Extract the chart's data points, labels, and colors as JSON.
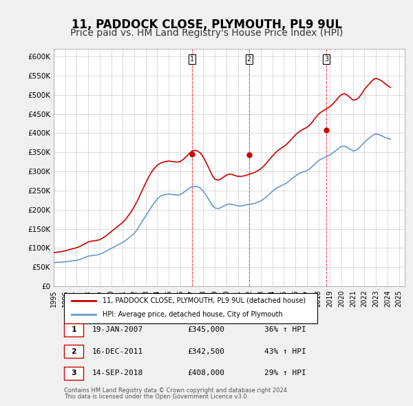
{
  "title": "11, PADDOCK CLOSE, PLYMOUTH, PL9 9UL",
  "subtitle": "Price paid vs. HM Land Registry's House Price Index (HPI)",
  "title_fontsize": 12,
  "subtitle_fontsize": 10,
  "ylabel": "",
  "ylim": [
    0,
    620000
  ],
  "yticks": [
    0,
    50000,
    100000,
    150000,
    200000,
    250000,
    300000,
    350000,
    400000,
    450000,
    500000,
    550000,
    600000
  ],
  "ytick_labels": [
    "£0",
    "£50K",
    "£100K",
    "£150K",
    "£200K",
    "£250K",
    "£300K",
    "£350K",
    "£400K",
    "£450K",
    "£500K",
    "£550K",
    "£600K"
  ],
  "background_color": "#f0f0f0",
  "plot_bg_color": "#ffffff",
  "grid_color": "#cccccc",
  "red_color": "#cc0000",
  "blue_color": "#6699cc",
  "sale_marker_color": "#cc0000",
  "vline_color": "#ff4444",
  "annotation_bg": "#ffffff",
  "sales": [
    {
      "date_num": 2007.05,
      "price": 345000,
      "label": "1"
    },
    {
      "date_num": 2011.96,
      "price": 342500,
      "label": "2"
    },
    {
      "date_num": 2018.71,
      "price": 408000,
      "label": "3"
    }
  ],
  "legend_line1": "11, PADDOCK CLOSE, PLYMOUTH, PL9 9UL (detached house)",
  "legend_line2": "HPI: Average price, detached house, City of Plymouth",
  "table_rows": [
    {
      "num": "1",
      "date": "19-JAN-2007",
      "price": "£345,000",
      "pct": "36% ↑ HPI"
    },
    {
      "num": "2",
      "date": "16-DEC-2011",
      "price": "£342,500",
      "pct": "43% ↑ HPI"
    },
    {
      "num": "3",
      "date": "14-SEP-2018",
      "price": "£408,000",
      "pct": "29% ↑ HPI"
    }
  ],
  "footnote1": "Contains HM Land Registry data © Crown copyright and database right 2024.",
  "footnote2": "This data is licensed under the Open Government Licence v3.0.",
  "hpi_data": {
    "years": [
      1995.0,
      1995.25,
      1995.5,
      1995.75,
      1996.0,
      1996.25,
      1996.5,
      1996.75,
      1997.0,
      1997.25,
      1997.5,
      1997.75,
      1998.0,
      1998.25,
      1998.5,
      1998.75,
      1999.0,
      1999.25,
      1999.5,
      1999.75,
      2000.0,
      2000.25,
      2000.5,
      2000.75,
      2001.0,
      2001.25,
      2001.5,
      2001.75,
      2002.0,
      2002.25,
      2002.5,
      2002.75,
      2003.0,
      2003.25,
      2003.5,
      2003.75,
      2004.0,
      2004.25,
      2004.5,
      2004.75,
      2005.0,
      2005.25,
      2005.5,
      2005.75,
      2006.0,
      2006.25,
      2006.5,
      2006.75,
      2007.0,
      2007.25,
      2007.5,
      2007.75,
      2008.0,
      2008.25,
      2008.5,
      2008.75,
      2009.0,
      2009.25,
      2009.5,
      2009.75,
      2010.0,
      2010.25,
      2010.5,
      2010.75,
      2011.0,
      2011.25,
      2011.5,
      2011.75,
      2012.0,
      2012.25,
      2012.5,
      2012.75,
      2013.0,
      2013.25,
      2013.5,
      2013.75,
      2014.0,
      2014.25,
      2014.5,
      2014.75,
      2015.0,
      2015.25,
      2015.5,
      2015.75,
      2016.0,
      2016.25,
      2016.5,
      2016.75,
      2017.0,
      2017.25,
      2017.5,
      2017.75,
      2018.0,
      2018.25,
      2018.5,
      2018.75,
      2019.0,
      2019.25,
      2019.5,
      2019.75,
      2020.0,
      2020.25,
      2020.5,
      2020.75,
      2021.0,
      2021.25,
      2021.5,
      2021.75,
      2022.0,
      2022.25,
      2022.5,
      2022.75,
      2023.0,
      2023.25,
      2023.5,
      2023.75,
      2024.0,
      2024.25
    ],
    "values": [
      62000,
      62500,
      63000,
      63500,
      64000,
      65000,
      66000,
      67000,
      68000,
      70000,
      73000,
      76000,
      79000,
      80000,
      81000,
      82000,
      84000,
      87000,
      91000,
      95000,
      99000,
      103000,
      107000,
      111000,
      115000,
      120000,
      126000,
      132000,
      138000,
      148000,
      160000,
      172000,
      184000,
      196000,
      208000,
      218000,
      228000,
      235000,
      238000,
      240000,
      241000,
      240000,
      239000,
      238000,
      240000,
      244000,
      250000,
      256000,
      260000,
      261000,
      260000,
      256000,
      248000,
      238000,
      225000,
      213000,
      205000,
      203000,
      205000,
      209000,
      213000,
      215000,
      214000,
      212000,
      210000,
      210000,
      211000,
      213000,
      214000,
      215000,
      217000,
      220000,
      223000,
      228000,
      234000,
      241000,
      248000,
      254000,
      259000,
      262000,
      266000,
      270000,
      276000,
      282000,
      288000,
      293000,
      297000,
      299000,
      302000,
      307000,
      314000,
      321000,
      328000,
      332000,
      336000,
      339000,
      343000,
      348000,
      354000,
      360000,
      365000,
      366000,
      363000,
      358000,
      353000,
      355000,
      360000,
      368000,
      376000,
      383000,
      389000,
      395000,
      398000,
      396000,
      393000,
      389000,
      386000,
      384000
    ]
  },
  "price_paid_data": {
    "years": [
      1995.0,
      1995.25,
      1995.5,
      1995.75,
      1996.0,
      1996.25,
      1996.5,
      1996.75,
      1997.0,
      1997.25,
      1997.5,
      1997.75,
      1998.0,
      1998.25,
      1998.5,
      1998.75,
      1999.0,
      1999.25,
      1999.5,
      1999.75,
      2000.0,
      2000.25,
      2000.5,
      2000.75,
      2001.0,
      2001.25,
      2001.5,
      2001.75,
      2002.0,
      2002.25,
      2002.5,
      2002.75,
      2003.0,
      2003.25,
      2003.5,
      2003.75,
      2004.0,
      2004.25,
      2004.5,
      2004.75,
      2005.0,
      2005.25,
      2005.5,
      2005.75,
      2006.0,
      2006.25,
      2006.5,
      2006.75,
      2007.0,
      2007.25,
      2007.5,
      2007.75,
      2008.0,
      2008.25,
      2008.5,
      2008.75,
      2009.0,
      2009.25,
      2009.5,
      2009.75,
      2010.0,
      2010.25,
      2010.5,
      2010.75,
      2011.0,
      2011.25,
      2011.5,
      2011.75,
      2012.0,
      2012.25,
      2012.5,
      2012.75,
      2013.0,
      2013.25,
      2013.5,
      2013.75,
      2014.0,
      2014.25,
      2014.5,
      2014.75,
      2015.0,
      2015.25,
      2015.5,
      2015.75,
      2016.0,
      2016.25,
      2016.5,
      2016.75,
      2017.0,
      2017.25,
      2017.5,
      2017.75,
      2018.0,
      2018.25,
      2018.5,
      2018.75,
      2019.0,
      2019.25,
      2019.5,
      2019.75,
      2020.0,
      2020.25,
      2020.5,
      2020.75,
      2021.0,
      2021.25,
      2021.5,
      2021.75,
      2022.0,
      2022.25,
      2022.5,
      2022.75,
      2023.0,
      2023.25,
      2023.5,
      2023.75,
      2024.0,
      2024.25
    ],
    "values": [
      88000,
      89000,
      90000,
      91000,
      93000,
      95000,
      97000,
      99000,
      101000,
      104000,
      108000,
      112000,
      116000,
      118000,
      119000,
      120000,
      122000,
      126000,
      131000,
      137000,
      143000,
      149000,
      155000,
      161000,
      167000,
      175000,
      185000,
      196000,
      208000,
      222000,
      238000,
      254000,
      270000,
      285000,
      298000,
      308000,
      316000,
      321000,
      324000,
      326000,
      327000,
      326000,
      325000,
      324000,
      326000,
      331000,
      338000,
      346000,
      353000,
      355000,
      353000,
      348000,
      337000,
      323000,
      307000,
      291000,
      280000,
      277000,
      280000,
      285000,
      290000,
      293000,
      292000,
      289000,
      287000,
      287000,
      288000,
      290000,
      293000,
      295000,
      298000,
      302000,
      307000,
      314000,
      322000,
      331000,
      340000,
      348000,
      355000,
      360000,
      365000,
      371000,
      379000,
      387000,
      395000,
      402000,
      407000,
      411000,
      415000,
      421000,
      430000,
      440000,
      449000,
      455000,
      460000,
      464000,
      469000,
      476000,
      484000,
      493000,
      500000,
      503000,
      499000,
      493000,
      486000,
      487000,
      492000,
      502000,
      514000,
      523000,
      531000,
      539000,
      543000,
      540000,
      536000,
      530000,
      524000,
      519000
    ]
  },
  "xlim": [
    1995.0,
    2025.5
  ],
  "xticks": [
    1995,
    1996,
    1997,
    1998,
    1999,
    2000,
    2001,
    2002,
    2003,
    2004,
    2005,
    2006,
    2007,
    2008,
    2009,
    2010,
    2011,
    2012,
    2013,
    2014,
    2015,
    2016,
    2017,
    2018,
    2019,
    2020,
    2021,
    2022,
    2023,
    2024,
    2025
  ]
}
